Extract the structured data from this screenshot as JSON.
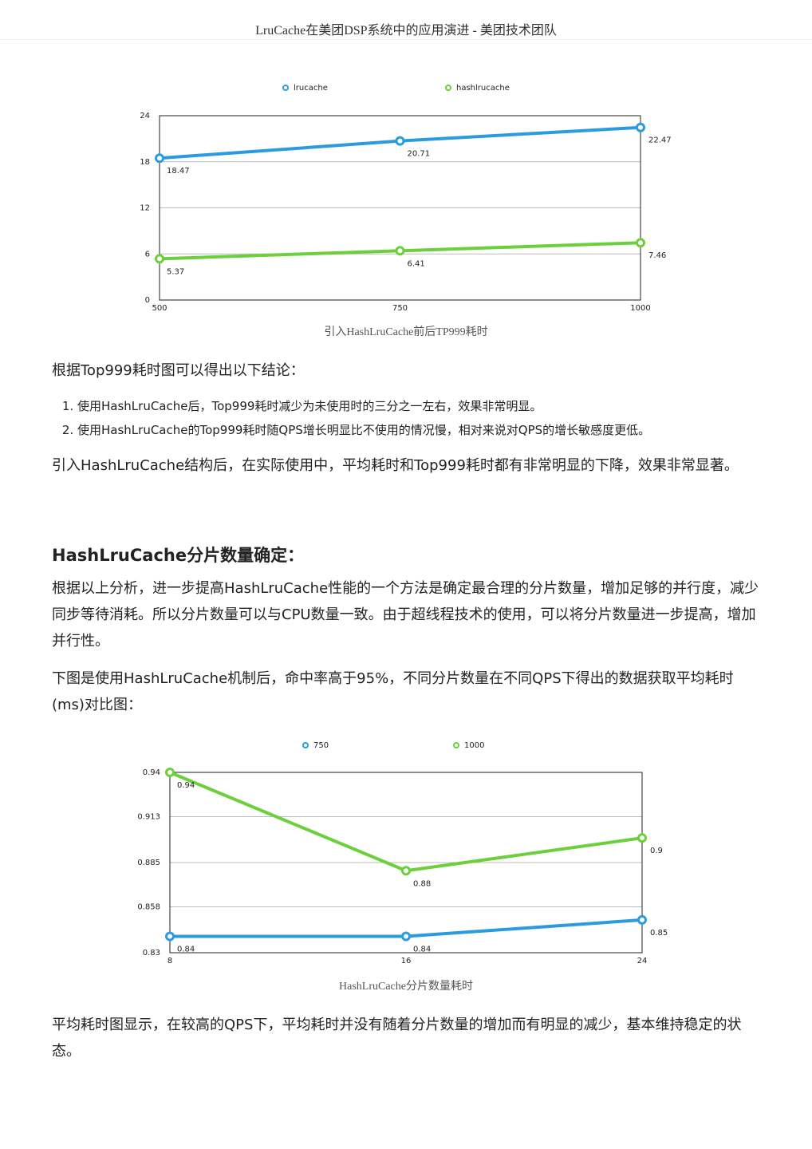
{
  "header": {
    "title": "LruCache在美团DSP系统中的应用演进 - 美团技术团队"
  },
  "chart_data": [
    {
      "type": "line",
      "caption": "引入HashLruCache前后TP999耗时",
      "x": [
        500,
        750,
        1000
      ],
      "xticks": [
        500,
        750,
        1000
      ],
      "xlim": [
        500,
        1000
      ],
      "ylim": [
        0,
        24
      ],
      "yticks": [
        0,
        6,
        12,
        18,
        24
      ],
      "grid": true,
      "series": [
        {
          "name": "lrucache",
          "color": "#2b9be0",
          "values": [
            18.47,
            20.71,
            22.47
          ]
        },
        {
          "name": "hashlrucache",
          "color": "#6ccf3c",
          "values": [
            5.37,
            6.41,
            7.46
          ]
        }
      ]
    },
    {
      "type": "line",
      "caption": "HashLruCache分片数量耗时",
      "x": [
        8,
        16,
        24
      ],
      "xticks": [
        8,
        16,
        24
      ],
      "xlim": [
        8,
        24
      ],
      "ylim": [
        0.83,
        0.94
      ],
      "yticks": [
        0.83,
        0.858,
        0.885,
        0.913,
        0.94
      ],
      "grid": true,
      "series": [
        {
          "name": "750",
          "color": "#2b9be0",
          "values": [
            0.84,
            0.84,
            0.85
          ]
        },
        {
          "name": "1000",
          "color": "#6ccf3c",
          "values": [
            0.94,
            0.88,
            0.9
          ]
        }
      ]
    }
  ],
  "body": {
    "p1": "根据Top999耗时图可以得出以下结论：",
    "list": [
      "使用HashLruCache后，Top999耗时减少为未使用时的三分之一左右，效果非常明显。",
      "使用HashLruCache的Top999耗时随QPS增长明显比不使用的情况慢，相对来说对QPS的增长敏感度更低。"
    ],
    "p2": "引入HashLruCache结构后，在实际使用中，平均耗时和Top999耗时都有非常明显的下降，效果非常显著。",
    "heading": "HashLruCache分片数量确定：",
    "p3": "根据以上分析，进一步提高HashLruCache性能的一个方法是确定最合理的分片数量，增加足够的并行度，减少同步等待消耗。所以分片数量可以与CPU数量一致。由于超线程技术的使用，可以将分片数量进一步提高，增加并行性。",
    "p4": "下图是使用HashLruCache机制后，命中率高于95%，不同分片数量在不同QPS下得出的数据获取平均耗时(ms)对比图：",
    "p5": "平均耗时图显示，在较高的QPS下，平均耗时并没有随着分片数量的增加而有明显的减少，基本维持稳定的状态。"
  }
}
